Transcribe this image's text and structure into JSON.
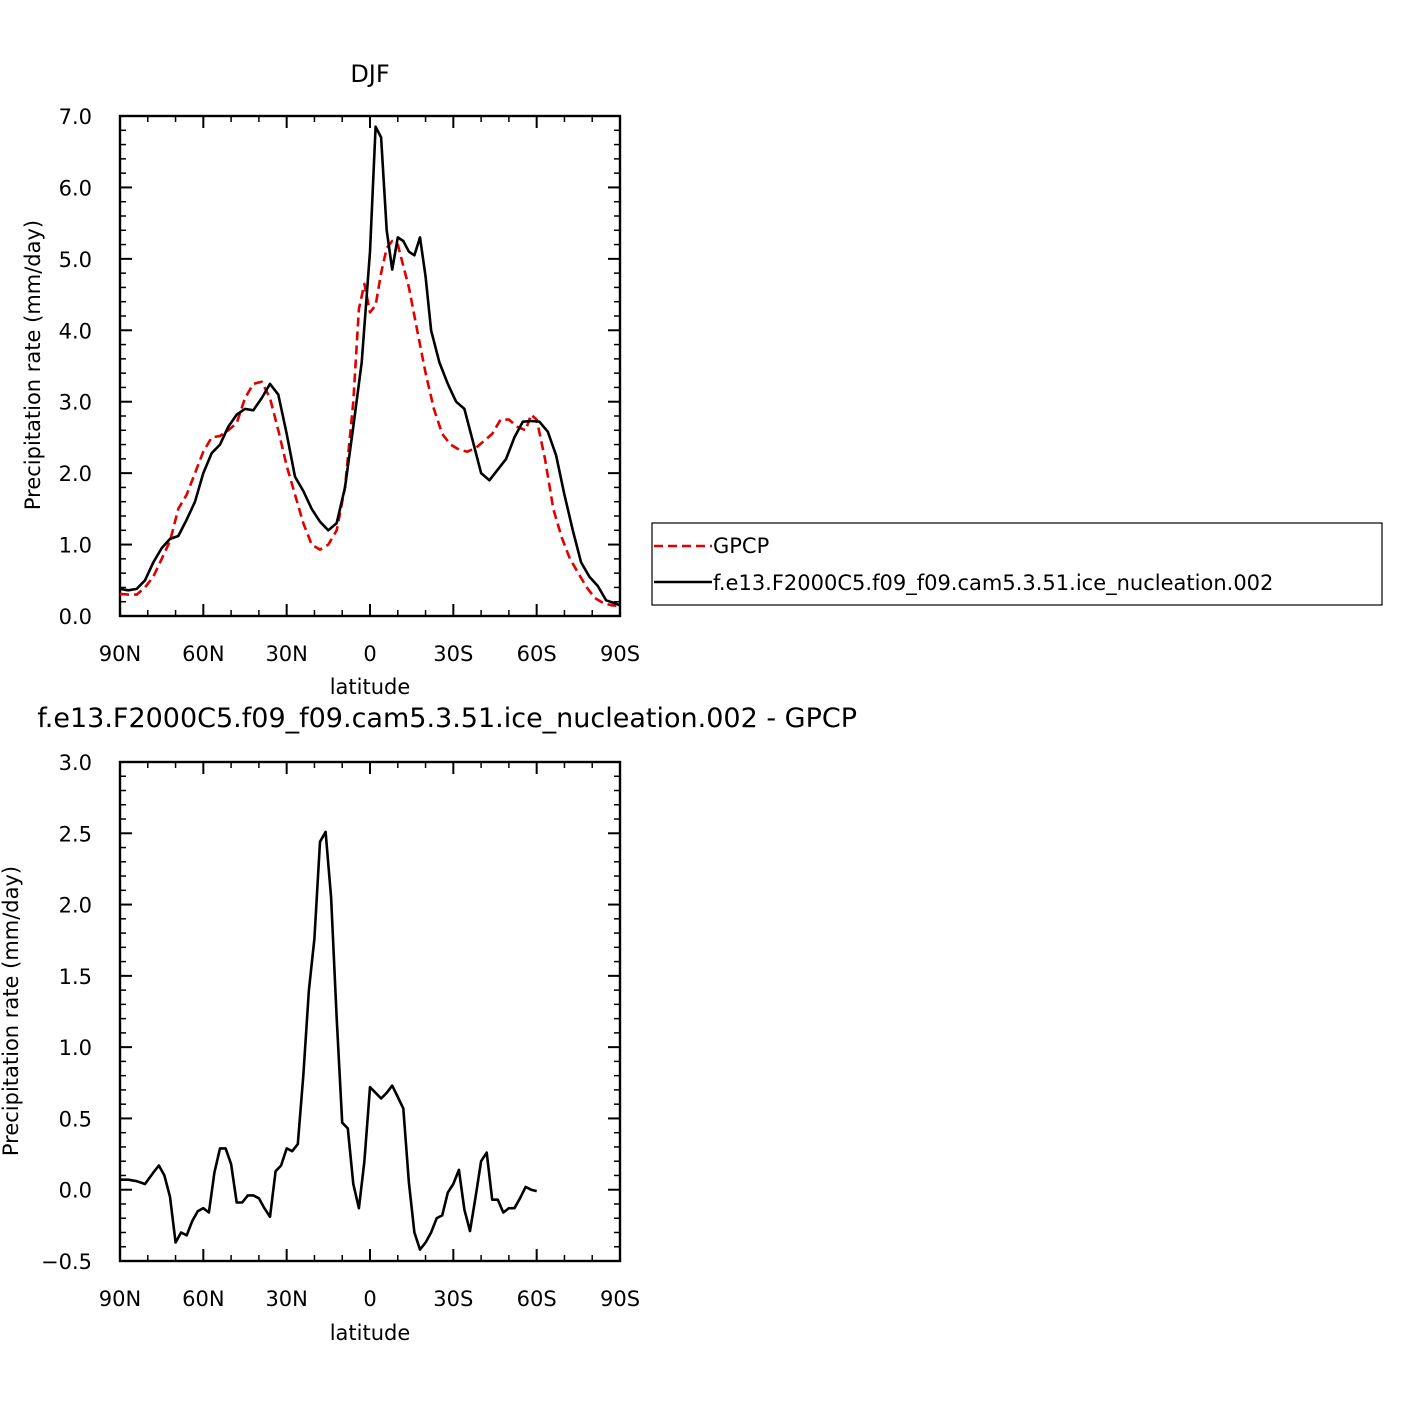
{
  "chart_data": [
    {
      "type": "line",
      "title": "DJF",
      "xlabel": "latitude",
      "ylabel": "Precipitation rate (mm/day)",
      "xlim": [
        -90,
        90
      ],
      "ylim": [
        0,
        7
      ],
      "xticks": [
        -90,
        -60,
        -30,
        0,
        30,
        60,
        90
      ],
      "xtick_labels": [
        "90N",
        "60N",
        "30N",
        "0",
        "30S",
        "60S",
        "90S"
      ],
      "yticks": [
        0,
        1,
        2,
        3,
        4,
        5,
        6,
        7
      ],
      "ytick_labels": [
        "0.0",
        "1.0",
        "2.0",
        "3.0",
        "4.0",
        "5.0",
        "6.0",
        "7.0"
      ],
      "legend_position": "right",
      "series": [
        {
          "name": "GPCP",
          "color": "#e00000",
          "dash": "dashed",
          "points": [
            [
              -90,
              0.31
            ],
            [
              -87,
              0.3
            ],
            [
              -84,
              0.3
            ],
            [
              -81,
              0.4
            ],
            [
              -78,
              0.55
            ],
            [
              -75,
              0.8
            ],
            [
              -72,
              1.05
            ],
            [
              -69,
              1.5
            ],
            [
              -66,
              1.7
            ],
            [
              -63,
              2.0
            ],
            [
              -60,
              2.3
            ],
            [
              -57,
              2.5
            ],
            [
              -54,
              2.52
            ],
            [
              -51,
              2.6
            ],
            [
              -48,
              2.7
            ],
            [
              -45,
              3.05
            ],
            [
              -42,
              3.25
            ],
            [
              -39,
              3.28
            ],
            [
              -36,
              3.05
            ],
            [
              -33,
              2.6
            ],
            [
              -30,
              2.1
            ],
            [
              -27,
              1.7
            ],
            [
              -24,
              1.3
            ],
            [
              -21,
              1.0
            ],
            [
              -18,
              0.93
            ],
            [
              -15,
              1.0
            ],
            [
              -12,
              1.2
            ],
            [
              -9,
              1.8
            ],
            [
              -6,
              3.0
            ],
            [
              -4,
              4.3
            ],
            [
              -2,
              4.65
            ],
            [
              0,
              4.25
            ],
            [
              2,
              4.35
            ],
            [
              4,
              4.8
            ],
            [
              6,
              5.15
            ],
            [
              8,
              5.25
            ],
            [
              10,
              5.2
            ],
            [
              12,
              4.9
            ],
            [
              14,
              4.6
            ],
            [
              17,
              4.0
            ],
            [
              20,
              3.4
            ],
            [
              23,
              2.9
            ],
            [
              26,
              2.55
            ],
            [
              29,
              2.4
            ],
            [
              32,
              2.33
            ],
            [
              35,
              2.3
            ],
            [
              38,
              2.35
            ],
            [
              41,
              2.45
            ],
            [
              44,
              2.55
            ],
            [
              47,
              2.75
            ],
            [
              50,
              2.75
            ],
            [
              53,
              2.65
            ],
            [
              56,
              2.6
            ],
            [
              58,
              2.82
            ],
            [
              60,
              2.75
            ],
            [
              63,
              2.2
            ],
            [
              66,
              1.5
            ],
            [
              69,
              1.1
            ],
            [
              72,
              0.8
            ],
            [
              75,
              0.6
            ],
            [
              78,
              0.4
            ],
            [
              81,
              0.25
            ],
            [
              84,
              0.18
            ],
            [
              87,
              0.15
            ],
            [
              90,
              0.14
            ]
          ]
        },
        {
          "name": "f.e13.F2000C5.f09_f09.cam5.3.51.ice_nucleation.002",
          "color": "#000000",
          "dash": "solid",
          "points": [
            [
              -90,
              0.38
            ],
            [
              -87,
              0.36
            ],
            [
              -84,
              0.38
            ],
            [
              -81,
              0.5
            ],
            [
              -78,
              0.75
            ],
            [
              -75,
              0.95
            ],
            [
              -72,
              1.08
            ],
            [
              -69,
              1.12
            ],
            [
              -66,
              1.35
            ],
            [
              -63,
              1.6
            ],
            [
              -60,
              2.0
            ],
            [
              -57,
              2.28
            ],
            [
              -54,
              2.4
            ],
            [
              -51,
              2.65
            ],
            [
              -48,
              2.82
            ],
            [
              -45,
              2.9
            ],
            [
              -42,
              2.88
            ],
            [
              -39,
              3.05
            ],
            [
              -36,
              3.25
            ],
            [
              -33,
              3.1
            ],
            [
              -30,
              2.55
            ],
            [
              -27,
              1.95
            ],
            [
              -24,
              1.75
            ],
            [
              -21,
              1.5
            ],
            [
              -18,
              1.32
            ],
            [
              -15,
              1.2
            ],
            [
              -12,
              1.3
            ],
            [
              -9,
              1.8
            ],
            [
              -6,
              2.65
            ],
            [
              -3,
              3.55
            ],
            [
              0,
              5.1
            ],
            [
              2,
              6.85
            ],
            [
              4,
              6.7
            ],
            [
              6,
              5.4
            ],
            [
              8,
              4.85
            ],
            [
              10,
              5.3
            ],
            [
              12,
              5.25
            ],
            [
              14,
              5.1
            ],
            [
              16,
              5.05
            ],
            [
              18,
              5.3
            ],
            [
              20,
              4.75
            ],
            [
              22,
              4.0
            ],
            [
              25,
              3.55
            ],
            [
              28,
              3.25
            ],
            [
              31,
              3.0
            ],
            [
              34,
              2.9
            ],
            [
              37,
              2.45
            ],
            [
              40,
              2.0
            ],
            [
              43,
              1.9
            ],
            [
              46,
              2.05
            ],
            [
              49,
              2.2
            ],
            [
              52,
              2.5
            ],
            [
              55,
              2.72
            ],
            [
              58,
              2.73
            ],
            [
              61,
              2.72
            ],
            [
              64,
              2.58
            ],
            [
              67,
              2.25
            ],
            [
              70,
              1.7
            ],
            [
              73,
              1.2
            ],
            [
              76,
              0.75
            ],
            [
              79,
              0.55
            ],
            [
              82,
              0.42
            ],
            [
              85,
              0.22
            ],
            [
              88,
              0.18
            ],
            [
              90,
              0.15
            ]
          ]
        }
      ]
    },
    {
      "type": "line",
      "title": "f.e13.F2000C5.f09_f09.cam5.3.51.ice_nucleation.002 - GPCP",
      "xlabel": "latitude",
      "ylabel": "Precipitation rate (mm/day)",
      "xlim": [
        -90,
        90
      ],
      "ylim": [
        -0.5,
        3
      ],
      "xticks": [
        -90,
        -60,
        -30,
        0,
        30,
        60,
        90
      ],
      "xtick_labels": [
        "90N",
        "60N",
        "30N",
        "0",
        "30S",
        "60S",
        "90S"
      ],
      "yticks": [
        -0.5,
        0,
        0.5,
        1,
        1.5,
        2,
        2.5,
        3
      ],
      "ytick_labels": [
        "−0.5",
        "0.0",
        "0.5",
        "1.0",
        "1.5",
        "2.0",
        "2.5",
        "3.0"
      ],
      "series": [
        {
          "color": "#000000",
          "dash": "solid",
          "points": [
            [
              -90,
              0.07
            ],
            [
              -87,
              0.07
            ],
            [
              -84,
              0.06
            ],
            [
              -81,
              0.04
            ],
            [
              -78,
              0.12
            ],
            [
              -76,
              0.17
            ],
            [
              -74,
              0.1
            ],
            [
              -72,
              -0.05
            ],
            [
              -70,
              -0.37
            ],
            [
              -68,
              -0.3
            ],
            [
              -66,
              -0.32
            ],
            [
              -64,
              -0.22
            ],
            [
              -62,
              -0.15
            ],
            [
              -60,
              -0.13
            ],
            [
              -58,
              -0.16
            ],
            [
              -56,
              0.12
            ],
            [
              -54,
              0.29
            ],
            [
              -52,
              0.29
            ],
            [
              -50,
              0.18
            ],
            [
              -48,
              -0.09
            ],
            [
              -46,
              -0.09
            ],
            [
              -44,
              -0.04
            ],
            [
              -42,
              -0.04
            ],
            [
              -40,
              -0.06
            ],
            [
              -38,
              -0.13
            ],
            [
              -36,
              -0.19
            ],
            [
              -34,
              0.13
            ],
            [
              -32,
              0.17
            ],
            [
              -30,
              0.29
            ],
            [
              -28,
              0.27
            ],
            [
              -26,
              0.32
            ],
            [
              -24,
              0.8
            ],
            [
              -22,
              1.4
            ],
            [
              -20,
              1.76
            ],
            [
              -18,
              2.44
            ],
            [
              -16,
              2.51
            ],
            [
              -14,
              2.05
            ],
            [
              -12,
              1.2
            ],
            [
              -10,
              0.47
            ],
            [
              -8,
              0.43
            ],
            [
              -6,
              0.04
            ],
            [
              -4,
              -0.13
            ],
            [
              -2,
              0.2
            ],
            [
              0,
              0.72
            ],
            [
              2,
              0.68
            ],
            [
              4,
              0.64
            ],
            [
              6,
              0.68
            ],
            [
              8,
              0.73
            ],
            [
              10,
              0.65
            ],
            [
              12,
              0.57
            ],
            [
              14,
              0.05
            ],
            [
              16,
              -0.3
            ],
            [
              18,
              -0.42
            ],
            [
              20,
              -0.37
            ],
            [
              22,
              -0.3
            ],
            [
              24,
              -0.2
            ],
            [
              26,
              -0.18
            ],
            [
              28,
              -0.02
            ],
            [
              30,
              0.04
            ],
            [
              32,
              0.14
            ],
            [
              34,
              -0.14
            ],
            [
              36,
              -0.29
            ],
            [
              38,
              -0.05
            ],
            [
              40,
              0.2
            ],
            [
              42,
              0.26
            ],
            [
              44,
              -0.07
            ],
            [
              46,
              -0.07
            ],
            [
              48,
              -0.16
            ],
            [
              50,
              -0.13
            ],
            [
              52,
              -0.13
            ],
            [
              54,
              -0.06
            ],
            [
              56,
              0.02
            ],
            [
              58,
              0.0
            ],
            [
              60,
              -0.01
            ]
          ]
        }
      ]
    }
  ]
}
